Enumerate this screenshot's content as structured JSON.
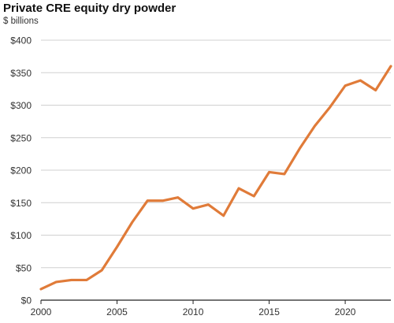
{
  "chart_data": {
    "type": "line",
    "title": "Private CRE equity dry powder",
    "subtitle": "$ billions",
    "x": [
      2000,
      2001,
      2002,
      2003,
      2004,
      2005,
      2006,
      2007,
      2008,
      2009,
      2010,
      2011,
      2012,
      2013,
      2014,
      2015,
      2016,
      2017,
      2018,
      2019,
      2020,
      2021,
      2022,
      2023
    ],
    "series": [
      {
        "values": [
          17,
          28,
          31,
          31,
          46,
          82,
          120,
          153,
          153,
          158,
          141,
          147,
          130,
          172,
          160,
          197,
          194,
          233,
          268,
          297,
          330,
          338,
          323,
          360
        ]
      }
    ],
    "y_ticks": [
      0,
      50,
      100,
      150,
      200,
      250,
      300,
      350,
      400
    ],
    "y_tick_labels": [
      "$0",
      "$50",
      "$100",
      "$150",
      "$200",
      "$250",
      "$300",
      "$350",
      "$400"
    ],
    "x_ticks": [
      2000,
      2005,
      2010,
      2015,
      2020
    ],
    "x_tick_labels": [
      "2000",
      "2005",
      "2010",
      "2015",
      "2020"
    ],
    "xlim": [
      2000,
      2023
    ],
    "ylim": [
      0,
      400
    ],
    "grid": "horizontal",
    "line_color": "#E07B39",
    "grid_color": "#d0d0d0",
    "axis_color": "#222222"
  }
}
